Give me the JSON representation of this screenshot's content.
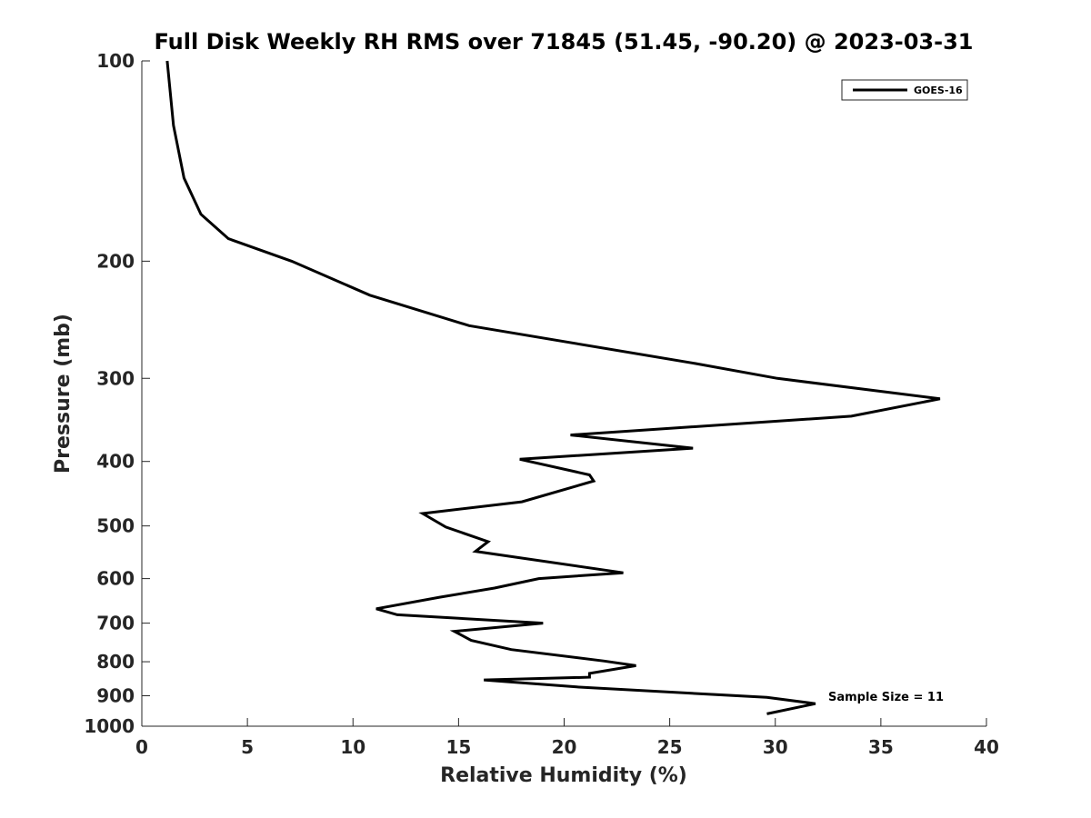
{
  "chart_data": {
    "type": "line",
    "title": "Full Disk Weekly RH RMS over 71845 (51.45, -90.20) @ 2023-03-31",
    "xlabel": "Relative Humidity (%)",
    "ylabel": "Pressure (mb)",
    "xlim": [
      0,
      40
    ],
    "ylim": [
      100,
      1000
    ],
    "y_scale": "log",
    "y_reversed": true,
    "grid": false,
    "legend_position": "top-right",
    "x_ticks": [
      0,
      5,
      10,
      15,
      20,
      25,
      30,
      35,
      40
    ],
    "x_tick_labels": [
      "0",
      "5",
      "10",
      "15",
      "20",
      "25",
      "30",
      "35",
      "40"
    ],
    "y_ticks": [
      100,
      200,
      300,
      400,
      500,
      600,
      700,
      800,
      900,
      1000
    ],
    "y_tick_labels": [
      "100",
      "200",
      "300",
      "400",
      "500",
      "600",
      "700",
      "800",
      "900",
      "1000"
    ],
    "series": [
      {
        "name": "GOES-16",
        "color": "#000000",
        "points": [
          [
            1.2,
            100
          ],
          [
            1.5,
            125
          ],
          [
            2.0,
            150
          ],
          [
            2.8,
            170
          ],
          [
            4.1,
            185
          ],
          [
            7.1,
            200
          ],
          [
            10.8,
            225
          ],
          [
            15.5,
            250
          ],
          [
            26.2,
            285
          ],
          [
            30.1,
            300
          ],
          [
            37.8,
            322
          ],
          [
            33.6,
            342
          ],
          [
            20.3,
            365
          ],
          [
            26.1,
            382
          ],
          [
            17.9,
            397
          ],
          [
            21.2,
            419
          ],
          [
            21.4,
            428
          ],
          [
            18.0,
            460
          ],
          [
            13.3,
            479
          ],
          [
            14.4,
            502
          ],
          [
            16.4,
            528
          ],
          [
            15.8,
            546
          ],
          [
            22.8,
            588
          ],
          [
            18.8,
            600
          ],
          [
            16.7,
            620
          ],
          [
            14.1,
            640
          ],
          [
            11.1,
            666
          ],
          [
            12.1,
            680
          ],
          [
            19.0,
            700
          ],
          [
            14.8,
            720
          ],
          [
            15.6,
            743
          ],
          [
            17.5,
            767
          ],
          [
            21.9,
            798
          ],
          [
            23.4,
            811
          ],
          [
            21.2,
            833
          ],
          [
            21.2,
            844
          ],
          [
            16.2,
            852
          ],
          [
            20.6,
            873
          ],
          [
            29.6,
            905
          ],
          [
            31.9,
            925
          ],
          [
            29.6,
            958
          ]
        ]
      }
    ],
    "annotation": "Sample Size = 11"
  }
}
